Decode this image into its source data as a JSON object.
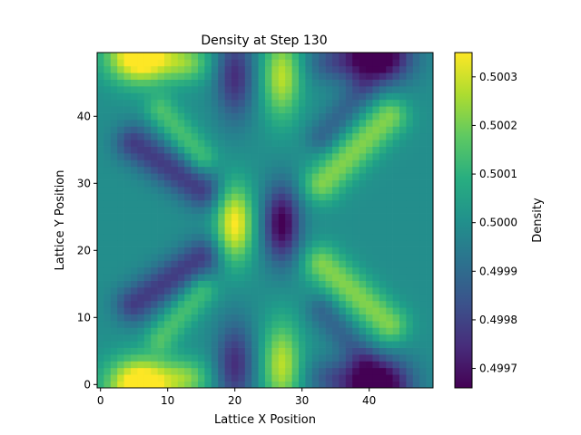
{
  "chart_data": {
    "type": "heatmap",
    "title": "Density at Step 130",
    "xlabel": "Lattice X Position",
    "ylabel": "Lattice Y Position",
    "grid": false,
    "xlim": [
      -0.5,
      49.5
    ],
    "ylim": [
      -0.5,
      49.5
    ],
    "x_ticks": [
      0,
      10,
      20,
      30,
      40
    ],
    "y_ticks": [
      0,
      10,
      20,
      30,
      40
    ],
    "nx": 50,
    "ny": 50,
    "colormap": "viridis",
    "colorbar": {
      "label": "Density",
      "vmin": 0.49966,
      "vmax": 0.50035,
      "ticks": [
        "0.4997",
        "0.4998",
        "0.4999",
        "0.5000",
        "0.5001",
        "0.5002",
        "0.5003"
      ]
    },
    "features": [
      {
        "x": 6,
        "y": 1,
        "value": 0.50035
      },
      {
        "x": 6,
        "y": 48,
        "value": 0.50035
      },
      {
        "x": 41,
        "y": 1,
        "value": 0.49966
      },
      {
        "x": 41,
        "y": 48,
        "value": 0.49966
      },
      {
        "x": 20,
        "y": 24,
        "value": 0.5003
      },
      {
        "x": 27,
        "y": 24,
        "value": 0.4997
      },
      {
        "x": 27,
        "y": 2,
        "value": 0.50025
      },
      {
        "x": 27,
        "y": 47,
        "value": 0.50025
      },
      {
        "x": 20,
        "y": 2,
        "value": 0.49975
      },
      {
        "x": 20,
        "y": 47,
        "value": 0.49975
      }
    ]
  }
}
